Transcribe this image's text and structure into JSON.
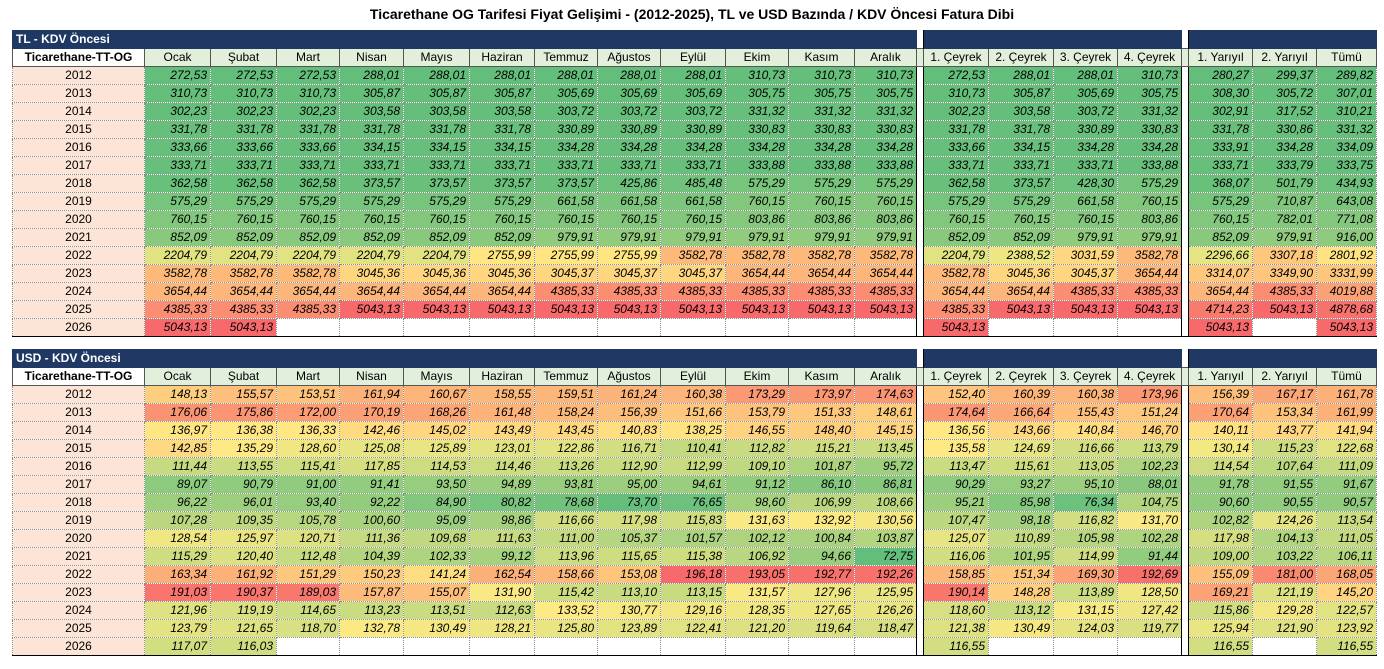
{
  "title": "Ticarethane OG Tarifesi Fiyat Gelişimi - (2012-2025), TL ve USD Bazında / KDV Öncesi Fatura Dibi",
  "columns": [
    "Ticarethane-TT-OG",
    "Ocak",
    "Şubat",
    "Mart",
    "Nisan",
    "Mayıs",
    "Haziran",
    "Temmuz",
    "Ağustos",
    "Eylül",
    "Ekim",
    "Kasım",
    "Aralık",
    "1. Çeyrek",
    "2. Çeyrek",
    "3. Çeyrek",
    "4. Çeyrek",
    "1. Yarıyıl",
    "2. Yarıyıl",
    "Tümü"
  ],
  "tables": [
    {
      "section": "TL - KDV Öncesi",
      "rows": [
        {
          "year": "2012",
          "values": [
            "272,53",
            "272,53",
            "272,53",
            "288,01",
            "288,01",
            "288,01",
            "288,01",
            "288,01",
            "288,01",
            "310,73",
            "310,73",
            "310,73",
            "272,53",
            "288,01",
            "288,01",
            "310,73",
            "280,27",
            "299,37",
            "289,82"
          ]
        },
        {
          "year": "2013",
          "values": [
            "310,73",
            "310,73",
            "310,73",
            "305,87",
            "305,87",
            "305,87",
            "305,69",
            "305,69",
            "305,69",
            "305,75",
            "305,75",
            "305,75",
            "310,73",
            "305,87",
            "305,69",
            "305,75",
            "308,30",
            "305,72",
            "307,01"
          ]
        },
        {
          "year": "2014",
          "values": [
            "302,23",
            "302,23",
            "302,23",
            "303,58",
            "303,58",
            "303,58",
            "303,72",
            "303,72",
            "303,72",
            "331,32",
            "331,32",
            "331,32",
            "302,23",
            "303,58",
            "303,72",
            "331,32",
            "302,91",
            "317,52",
            "310,21"
          ]
        },
        {
          "year": "2015",
          "values": [
            "331,78",
            "331,78",
            "331,78",
            "331,78",
            "331,78",
            "331,78",
            "330,89",
            "330,89",
            "330,89",
            "330,83",
            "330,83",
            "330,83",
            "331,78",
            "331,78",
            "330,89",
            "330,83",
            "331,78",
            "330,86",
            "331,32"
          ]
        },
        {
          "year": "2016",
          "values": [
            "333,66",
            "333,66",
            "333,66",
            "334,15",
            "334,15",
            "334,15",
            "334,28",
            "334,28",
            "334,28",
            "334,28",
            "334,28",
            "334,28",
            "333,66",
            "334,15",
            "334,28",
            "334,28",
            "333,91",
            "334,28",
            "334,09"
          ]
        },
        {
          "year": "2017",
          "values": [
            "333,71",
            "333,71",
            "333,71",
            "333,71",
            "333,71",
            "333,71",
            "333,71",
            "333,71",
            "333,71",
            "333,88",
            "333,88",
            "333,88",
            "333,71",
            "333,71",
            "333,71",
            "333,88",
            "333,71",
            "333,79",
            "333,75"
          ]
        },
        {
          "year": "2018",
          "values": [
            "362,58",
            "362,58",
            "362,58",
            "373,57",
            "373,57",
            "373,57",
            "373,57",
            "425,86",
            "485,48",
            "575,29",
            "575,29",
            "575,29",
            "362,58",
            "373,57",
            "428,30",
            "575,29",
            "368,07",
            "501,79",
            "434,93"
          ]
        },
        {
          "year": "2019",
          "values": [
            "575,29",
            "575,29",
            "575,29",
            "575,29",
            "575,29",
            "575,29",
            "661,58",
            "661,58",
            "661,58",
            "760,15",
            "760,15",
            "760,15",
            "575,29",
            "575,29",
            "661,58",
            "760,15",
            "575,29",
            "710,87",
            "643,08"
          ]
        },
        {
          "year": "2020",
          "values": [
            "760,15",
            "760,15",
            "760,15",
            "760,15",
            "760,15",
            "760,15",
            "760,15",
            "760,15",
            "760,15",
            "803,86",
            "803,86",
            "803,86",
            "760,15",
            "760,15",
            "760,15",
            "803,86",
            "760,15",
            "782,01",
            "771,08"
          ]
        },
        {
          "year": "2021",
          "values": [
            "852,09",
            "852,09",
            "852,09",
            "852,09",
            "852,09",
            "852,09",
            "979,91",
            "979,91",
            "979,91",
            "979,91",
            "979,91",
            "979,91",
            "852,09",
            "852,09",
            "979,91",
            "979,91",
            "852,09",
            "979,91",
            "916,00"
          ]
        },
        {
          "year": "2022",
          "values": [
            "2204,79",
            "2204,79",
            "2204,79",
            "2204,79",
            "2204,79",
            "2755,99",
            "2755,99",
            "2755,99",
            "3582,78",
            "3582,78",
            "3582,78",
            "3582,78",
            "2204,79",
            "2388,52",
            "3031,59",
            "3582,78",
            "2296,66",
            "3307,18",
            "2801,92"
          ]
        },
        {
          "year": "2023",
          "values": [
            "3582,78",
            "3582,78",
            "3582,78",
            "3045,36",
            "3045,36",
            "3045,36",
            "3045,37",
            "3045,37",
            "3045,37",
            "3654,44",
            "3654,44",
            "3654,44",
            "3582,78",
            "3045,36",
            "3045,37",
            "3654,44",
            "3314,07",
            "3349,90",
            "3331,99"
          ]
        },
        {
          "year": "2024",
          "values": [
            "3654,44",
            "3654,44",
            "3654,44",
            "3654,44",
            "3654,44",
            "3654,44",
            "4385,33",
            "4385,33",
            "4385,33",
            "4385,33",
            "4385,33",
            "4385,33",
            "3654,44",
            "3654,44",
            "4385,33",
            "4385,33",
            "3654,44",
            "4385,33",
            "4019,88"
          ]
        },
        {
          "year": "2025",
          "values": [
            "4385,33",
            "4385,33",
            "4385,33",
            "5043,13",
            "5043,13",
            "5043,13",
            "5043,13",
            "5043,13",
            "5043,13",
            "5043,13",
            "5043,13",
            "5043,13",
            "4385,33",
            "5043,13",
            "5043,13",
            "5043,13",
            "4714,23",
            "5043,13",
            "4878,68"
          ]
        },
        {
          "year": "2026",
          "values": [
            "5043,13",
            "5043,13",
            "",
            "",
            "",
            "",
            "",
            "",
            "",
            "",
            "",
            "",
            "5043,13",
            "",
            "",
            "",
            "5043,13",
            "",
            "5043,13"
          ]
        }
      ]
    },
    {
      "section": "USD - KDV Öncesi",
      "rows": [
        {
          "year": "2012",
          "values": [
            "148,13",
            "155,57",
            "153,51",
            "161,94",
            "160,67",
            "158,55",
            "159,51",
            "161,24",
            "160,38",
            "173,29",
            "173,97",
            "174,63",
            "152,40",
            "160,39",
            "160,38",
            "173,96",
            "156,39",
            "167,17",
            "161,78"
          ]
        },
        {
          "year": "2013",
          "values": [
            "176,06",
            "175,86",
            "172,00",
            "170,19",
            "168,26",
            "161,48",
            "158,24",
            "156,39",
            "151,66",
            "153,79",
            "151,33",
            "148,61",
            "174,64",
            "166,64",
            "155,43",
            "151,24",
            "170,64",
            "153,34",
            "161,99"
          ]
        },
        {
          "year": "2014",
          "values": [
            "136,97",
            "136,38",
            "136,33",
            "142,46",
            "145,02",
            "143,49",
            "143,45",
            "140,83",
            "138,25",
            "146,55",
            "148,40",
            "145,15",
            "136,56",
            "143,66",
            "140,84",
            "146,70",
            "140,11",
            "143,77",
            "141,94"
          ]
        },
        {
          "year": "2015",
          "values": [
            "142,85",
            "135,29",
            "128,60",
            "125,08",
            "125,89",
            "123,01",
            "122,86",
            "116,71",
            "110,41",
            "112,82",
            "115,21",
            "113,45",
            "135,58",
            "124,69",
            "116,66",
            "113,79",
            "130,14",
            "115,23",
            "122,68"
          ]
        },
        {
          "year": "2016",
          "values": [
            "111,44",
            "113,55",
            "115,41",
            "117,85",
            "114,53",
            "114,46",
            "113,26",
            "112,90",
            "112,99",
            "109,10",
            "101,87",
            "95,72",
            "113,47",
            "115,61",
            "113,05",
            "102,23",
            "114,54",
            "107,64",
            "111,09"
          ]
        },
        {
          "year": "2017",
          "values": [
            "89,07",
            "90,79",
            "91,00",
            "91,41",
            "93,50",
            "94,89",
            "93,81",
            "95,00",
            "94,61",
            "91,12",
            "86,10",
            "86,81",
            "90,29",
            "93,27",
            "95,10",
            "88,01",
            "91,78",
            "91,55",
            "91,67"
          ]
        },
        {
          "year": "2018",
          "values": [
            "96,22",
            "96,01",
            "93,40",
            "92,22",
            "84,90",
            "80,82",
            "78,68",
            "73,70",
            "76,65",
            "98,60",
            "106,99",
            "108,66",
            "95,21",
            "85,98",
            "76,34",
            "104,75",
            "90,60",
            "90,55",
            "90,57"
          ]
        },
        {
          "year": "2019",
          "values": [
            "107,28",
            "109,35",
            "105,78",
            "100,60",
            "95,09",
            "98,86",
            "116,66",
            "117,98",
            "115,83",
            "131,63",
            "132,92",
            "130,56",
            "107,47",
            "98,18",
            "116,82",
            "131,70",
            "102,82",
            "124,26",
            "113,54"
          ]
        },
        {
          "year": "2020",
          "values": [
            "128,54",
            "125,97",
            "120,71",
            "111,36",
            "109,68",
            "111,63",
            "111,00",
            "105,37",
            "101,57",
            "102,12",
            "100,84",
            "103,87",
            "125,07",
            "110,89",
            "105,98",
            "102,28",
            "117,98",
            "104,13",
            "111,05"
          ]
        },
        {
          "year": "2021",
          "values": [
            "115,29",
            "120,40",
            "112,48",
            "104,39",
            "102,33",
            "99,12",
            "113,96",
            "115,65",
            "115,38",
            "106,92",
            "94,66",
            "72,75",
            "116,06",
            "101,95",
            "114,99",
            "91,44",
            "109,00",
            "103,22",
            "106,11"
          ]
        },
        {
          "year": "2022",
          "values": [
            "163,34",
            "161,92",
            "151,29",
            "150,23",
            "141,24",
            "162,54",
            "158,66",
            "153,08",
            "196,18",
            "193,05",
            "192,77",
            "192,26",
            "158,85",
            "151,34",
            "169,30",
            "192,69",
            "155,09",
            "181,00",
            "168,05"
          ]
        },
        {
          "year": "2023",
          "values": [
            "191,03",
            "190,37",
            "189,03",
            "157,87",
            "155,07",
            "131,90",
            "115,42",
            "113,10",
            "113,15",
            "131,57",
            "127,96",
            "125,95",
            "190,14",
            "148,28",
            "113,89",
            "128,50",
            "169,21",
            "121,19",
            "145,20"
          ]
        },
        {
          "year": "2024",
          "values": [
            "121,96",
            "119,19",
            "114,65",
            "113,23",
            "113,51",
            "112,63",
            "133,52",
            "130,77",
            "129,16",
            "128,35",
            "127,65",
            "126,26",
            "118,60",
            "113,12",
            "131,15",
            "127,42",
            "115,86",
            "129,28",
            "122,57"
          ]
        },
        {
          "year": "2025",
          "values": [
            "123,79",
            "121,65",
            "118,70",
            "132,78",
            "130,49",
            "128,21",
            "125,80",
            "123,89",
            "122,41",
            "121,20",
            "119,64",
            "118,47",
            "121,38",
            "130,49",
            "124,03",
            "119,77",
            "125,94",
            "121,90",
            "123,92"
          ]
        },
        {
          "year": "2026",
          "values": [
            "117,07",
            "116,03",
            "",
            "",
            "",
            "",
            "",
            "",
            "",
            "",
            "",
            "",
            "116,55",
            "",
            "",
            "",
            "116,55",
            "",
            "116,55"
          ]
        }
      ]
    }
  ]
}
